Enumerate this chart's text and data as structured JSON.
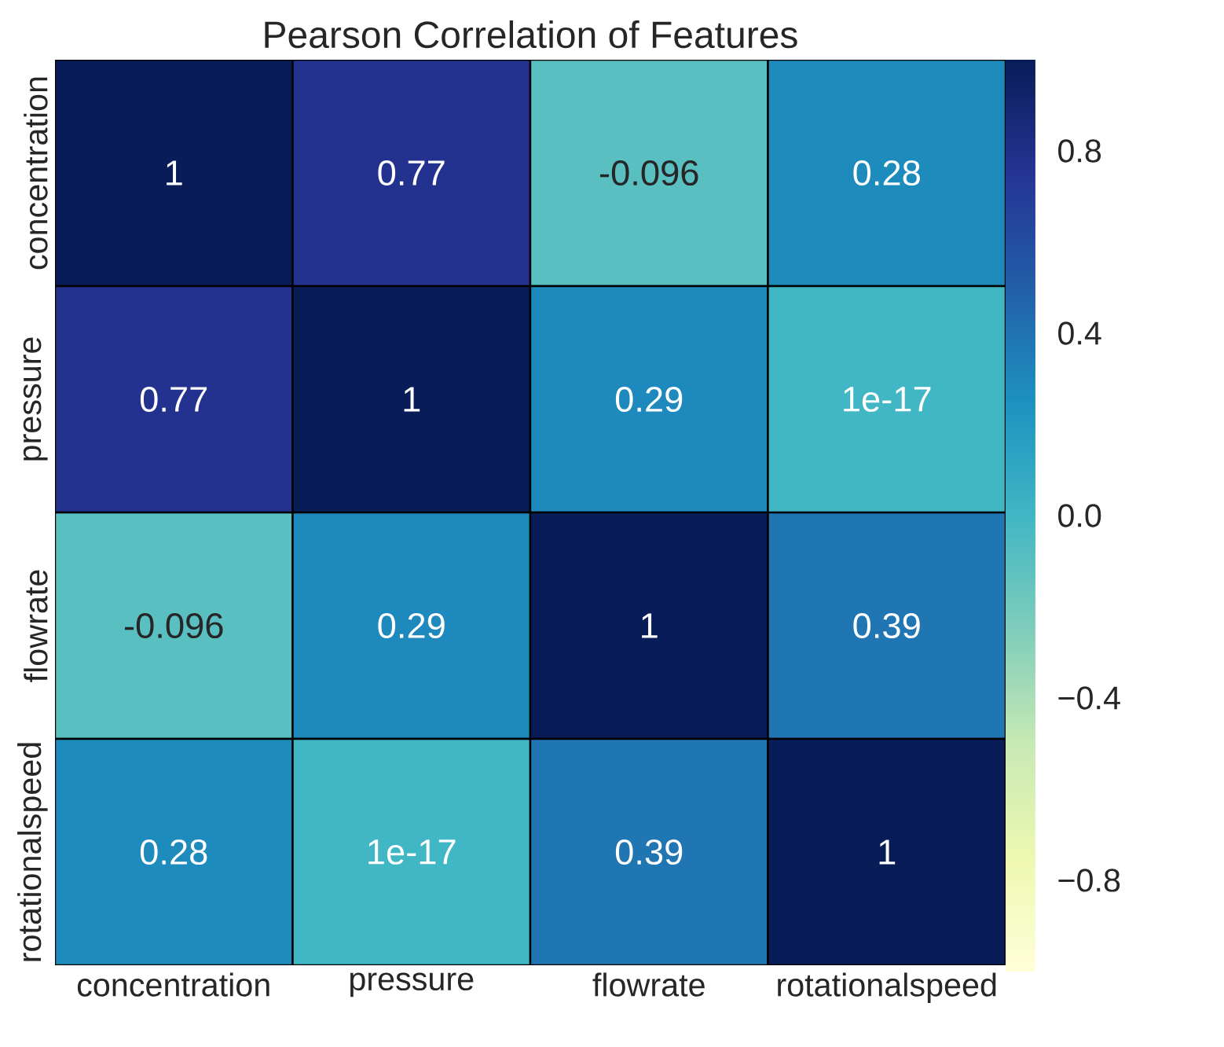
{
  "chart_data": {
    "type": "heatmap",
    "title": "Pearson Correlation of Features",
    "categories": [
      "concentration",
      "pressure",
      "flowrate",
      "rotationalspeed"
    ],
    "y_categories": [
      "concentration",
      "pressure",
      "flowrate",
      "rotationalspeed"
    ],
    "cells": [
      [
        1,
        0.77,
        -0.096,
        0.28
      ],
      [
        0.77,
        1,
        0.29,
        1e-17
      ],
      [
        -0.096,
        0.29,
        1,
        0.39
      ],
      [
        0.28,
        1e-17,
        0.39,
        1
      ]
    ],
    "cell_labels": [
      [
        "1",
        "0.77",
        "-0.096",
        "0.28"
      ],
      [
        "0.77",
        "1",
        "0.29",
        "1e-17"
      ],
      [
        "-0.096",
        "0.29",
        "1",
        "0.39"
      ],
      [
        "0.28",
        "1e-17",
        "0.39",
        "1"
      ]
    ],
    "clim": [
      -1,
      1
    ],
    "cticks": [
      {
        "value": -0.8,
        "label": "−0.8"
      },
      {
        "value": -0.4,
        "label": "−0.4"
      },
      {
        "value": 0.0,
        "label": "0.0"
      },
      {
        "value": 0.4,
        "label": "0.4"
      },
      {
        "value": 0.8,
        "label": "0.8"
      }
    ]
  }
}
